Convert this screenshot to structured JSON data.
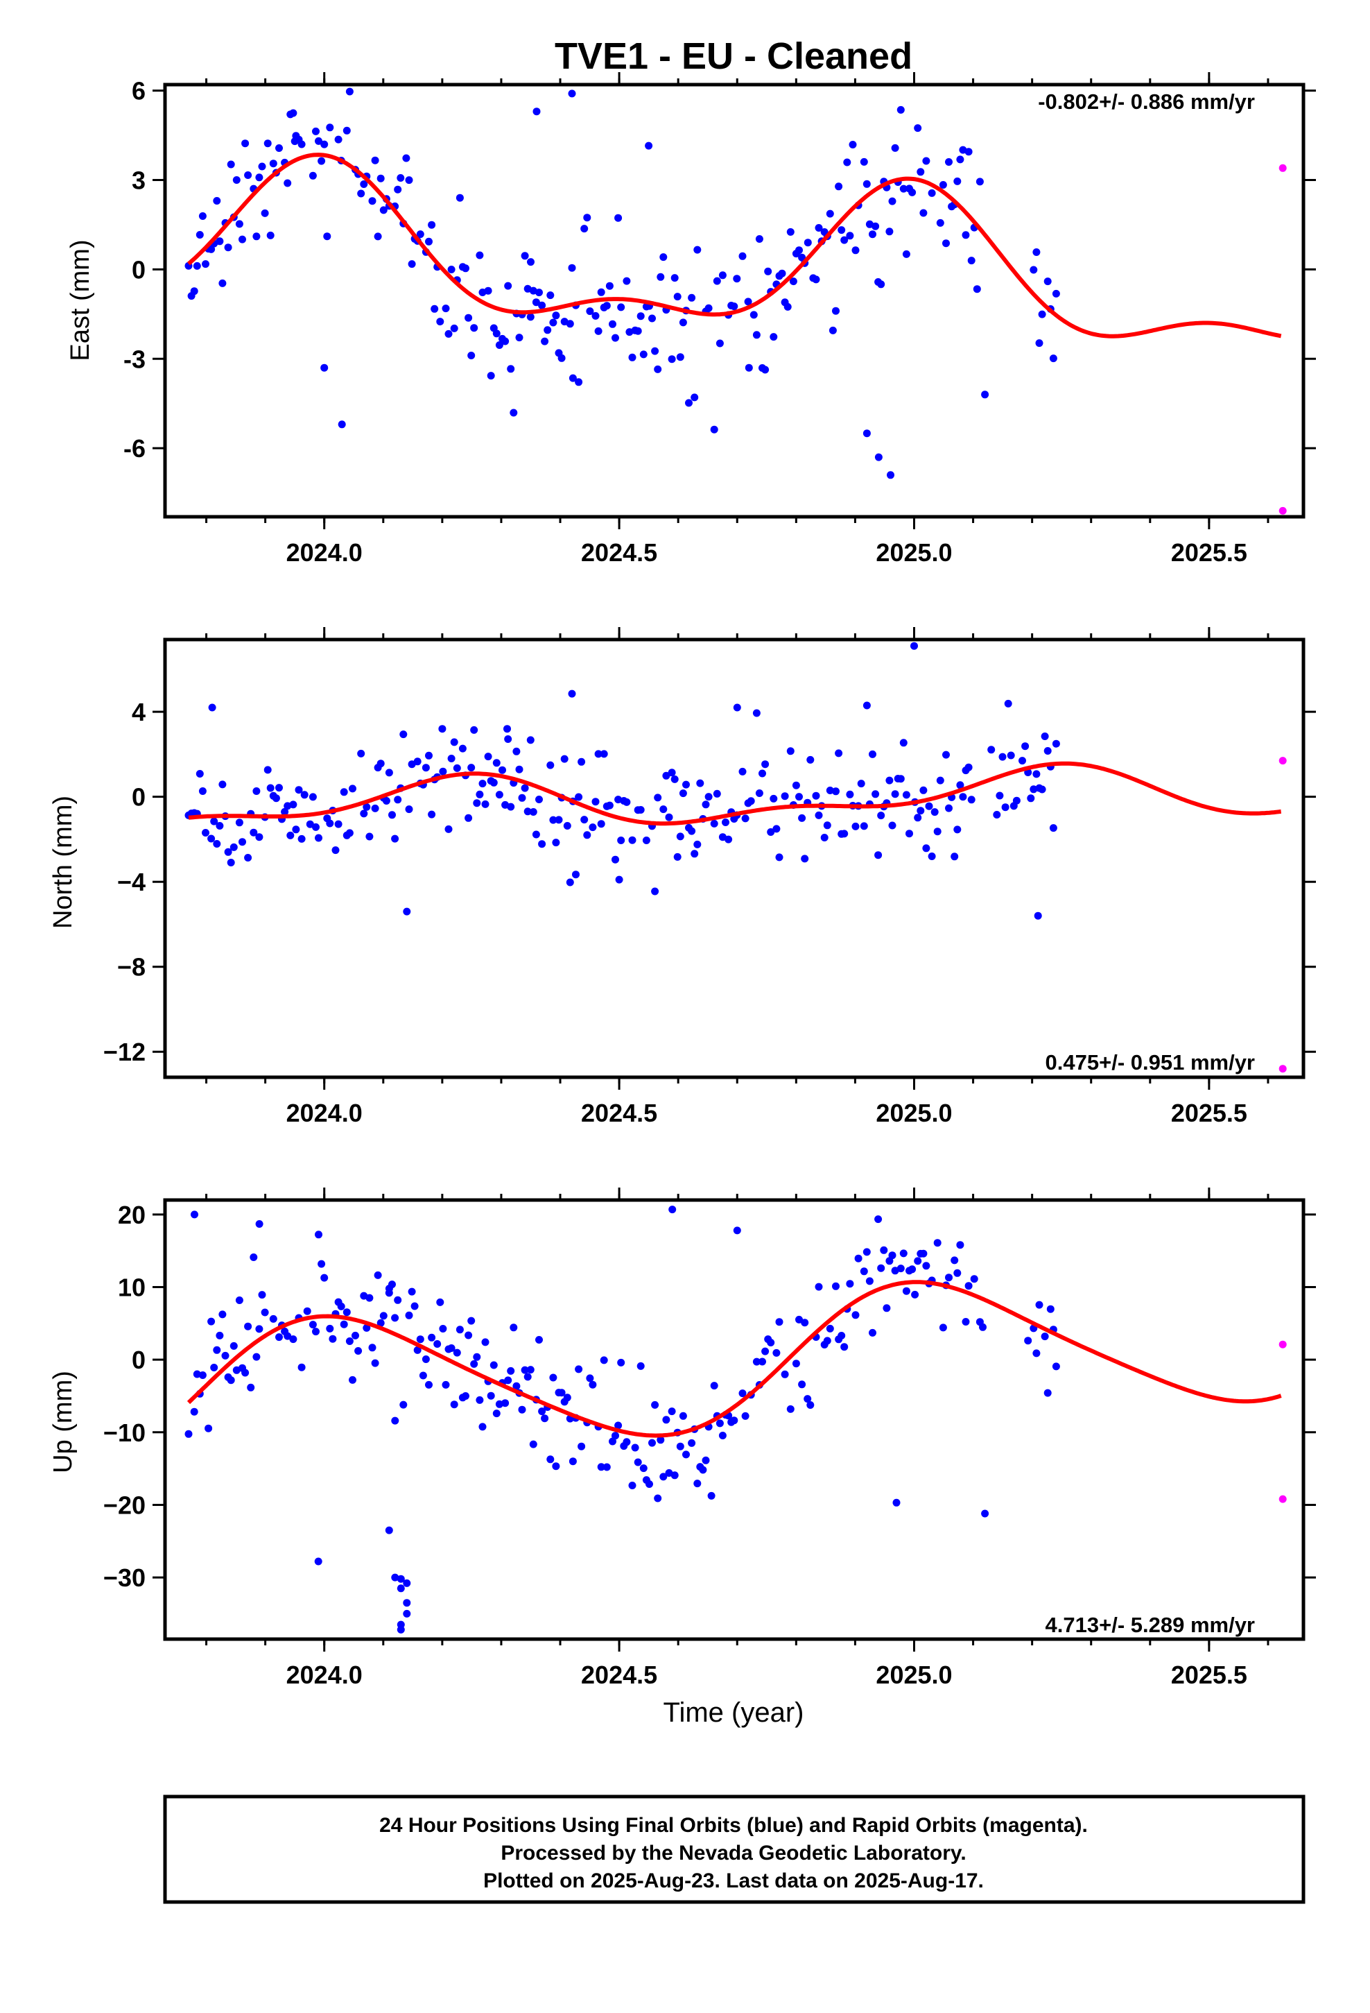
{
  "figure": {
    "title": "TVE1  - EU - Cleaned",
    "xlabel": "Time (year)",
    "footer": [
      "24 Hour Positions Using Final Orbits (blue) and Rapid Orbits (magenta).",
      "Processed by the Nevada Geodetic Laboratory.",
      "Plotted on 2025-Aug-23. Last data on 2025-Aug-17."
    ],
    "colors": {
      "final_orbits": "#0000ff",
      "rapid_orbits": "#ff00ff",
      "model_fit": "#ff0000",
      "axes": "#000000"
    }
  },
  "chart_data": [
    {
      "type": "scatter",
      "ylabel": "East (mm)",
      "rate_text": "-0.802+/- 0.886 mm/yr",
      "xlim": [
        2023.73,
        2025.66
      ],
      "ylim": [
        -8.3,
        6.2
      ],
      "xticks": [
        2024.0,
        2024.5,
        2025.0,
        2025.5
      ],
      "xtick_labels": [
        "2024.0",
        "2024.5",
        "2025.0",
        "2025.5"
      ],
      "yticks": [
        -6,
        -3,
        0,
        3,
        6
      ],
      "ytick_labels": [
        "-6",
        "-3",
        "0",
        "3",
        "6"
      ],
      "model": {
        "name": "fit",
        "offset": 0.0,
        "trend": -0.802,
        "t0": 2024.7,
        "terms": [
          [
            1.0,
            2.22,
            1.65
          ],
          [
            2.0,
            1.06,
            1.63
          ]
        ]
      },
      "final_series": {
        "name": "Final Orbits",
        "scatter": 1.25,
        "gap": [
          2025.12,
          2025.2
        ],
        "outliers": [
          [
            2024.03,
            -5.2
          ],
          [
            2024.92,
            -5.5
          ],
          [
            2024.94,
            -6.3
          ],
          [
            2024.96,
            -6.9
          ],
          [
            2025.12,
            -4.2
          ],
          [
            2024.42,
            5.9
          ],
          [
            2024.36,
            5.3
          ],
          [
            2024.42,
            0.05
          ],
          [
            2024.35,
            0.25
          ],
          [
            2024.55,
            4.15
          ],
          [
            2023.95,
            4.3
          ],
          [
            2024.0,
            -3.3
          ],
          [
            2024.72,
            -3.3
          ],
          [
            2024.82,
            0.9
          ]
        ]
      },
      "rapid_series": {
        "name": "Rapid Orbits",
        "x": [
          2025.625,
          2025.625
        ],
        "y": [
          3.4,
          -8.1
        ]
      }
    },
    {
      "type": "scatter",
      "ylabel": "North (mm)",
      "rate_text": "0.475+/- 0.951 mm/yr",
      "xlim": [
        2023.73,
        2025.66
      ],
      "ylim": [
        -13.2,
        7.4
      ],
      "xticks": [
        2024.0,
        2024.5,
        2025.0,
        2025.5
      ],
      "xtick_labels": [
        "2024.0",
        "2024.5",
        "2025.0",
        "2025.5"
      ],
      "yticks": [
        -12,
        -8,
        -4,
        0,
        4
      ],
      "ytick_labels": [
        "−12",
        "−8",
        "−4",
        "0",
        "4"
      ],
      "model": {
        "name": "fit",
        "offset": -0.15,
        "trend": 0.475,
        "t0": 2024.7,
        "terms": [
          [
            1.0,
            0.98,
            0.25
          ],
          [
            2.0,
            0.52,
            4.46
          ]
        ]
      },
      "final_series": {
        "name": "Final Orbits",
        "scatter": 1.35,
        "gap": [
          2025.1,
          2025.13
        ],
        "outliers": [
          [
            2024.14,
            -5.4
          ],
          [
            2025.21,
            -5.6
          ],
          [
            2025.0,
            7.1
          ],
          [
            2024.42,
            4.85
          ],
          [
            2023.81,
            4.2
          ],
          [
            2024.7,
            4.2
          ],
          [
            2024.92,
            4.3
          ],
          [
            2024.5,
            -3.9
          ],
          [
            2024.2,
            3.2
          ],
          [
            2024.31,
            3.2
          ]
        ]
      },
      "rapid_series": {
        "name": "Rapid Orbits",
        "x": [
          2025.625,
          2025.625
        ],
        "y": [
          1.7,
          -12.8
        ]
      }
    },
    {
      "type": "scatter",
      "ylabel": "Up (mm)",
      "rate_text": "4.713+/- 5.289 mm/yr",
      "xlim": [
        2023.73,
        2025.66
      ],
      "ylim": [
        -38.5,
        22.0
      ],
      "xticks": [
        2024.0,
        2024.5,
        2025.0,
        2025.5
      ],
      "xtick_labels": [
        "2024.0",
        "2024.5",
        "2025.0",
        "2025.5"
      ],
      "yticks": [
        -30,
        -20,
        -10,
        0,
        10,
        20
      ],
      "ytick_labels": [
        "−30",
        "−20",
        "−10",
        "0",
        "10",
        "20"
      ],
      "model": {
        "name": "fit",
        "offset": -0.5,
        "trend": 4.713,
        "t0": 2024.7,
        "terms": [
          [
            1.0,
            9.23,
            1.38
          ],
          [
            2.0,
            1.31,
            2.56
          ]
        ]
      },
      "final_series": {
        "name": "Final Orbits",
        "scatter": 4.4,
        "gap": [
          2025.12,
          2025.19
        ],
        "outliers": [
          [
            2024.13,
            -30.2
          ],
          [
            2024.14,
            -30.8
          ],
          [
            2024.13,
            -31.5
          ],
          [
            2024.14,
            -33.5
          ],
          [
            2024.13,
            -36.5
          ],
          [
            2024.13,
            -37.2
          ],
          [
            2024.12,
            -30.0
          ],
          [
            2024.11,
            -23.5
          ],
          [
            2024.14,
            -35.0
          ],
          [
            2023.99,
            -27.8
          ],
          [
            2025.12,
            -21.2
          ],
          [
            2024.97,
            -19.7
          ],
          [
            2023.78,
            20.0
          ],
          [
            2024.59,
            20.7
          ],
          [
            2023.89,
            18.7
          ],
          [
            2024.7,
            17.8
          ],
          [
            2024.12,
            -8.4
          ],
          [
            2024.11,
            9.2
          ]
        ]
      },
      "rapid_series": {
        "name": "Rapid Orbits",
        "x": [
          2025.625,
          2025.625
        ],
        "y": [
          2.1,
          -19.2
        ]
      }
    }
  ]
}
